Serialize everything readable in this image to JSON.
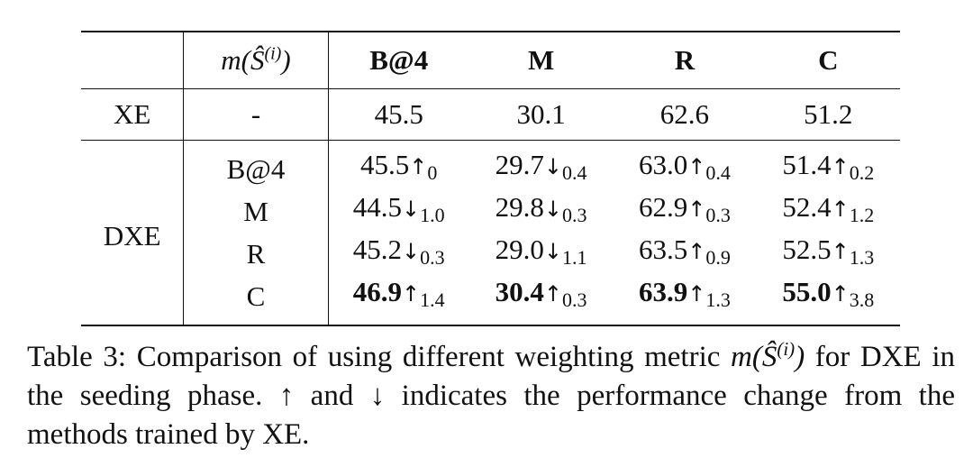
{
  "table": {
    "header": {
      "col_label": "m(Ŝ",
      "col_label_sup": "(i)",
      "col_label_close": ")",
      "metrics": [
        "B@4",
        "M",
        "R",
        "C"
      ]
    },
    "xe_row": {
      "label": "XE",
      "metric": "-",
      "values": [
        "45.5",
        "30.1",
        "62.6",
        "51.2"
      ]
    },
    "dxe_group": {
      "label": "DXE",
      "rows": [
        {
          "metric": "B@4",
          "cells": [
            {
              "value": "45.5",
              "arrow": "↑",
              "delta": "0"
            },
            {
              "value": "29.7",
              "arrow": "↓",
              "delta": "0.4"
            },
            {
              "value": "63.0",
              "arrow": "↑",
              "delta": "0.4"
            },
            {
              "value": "51.4",
              "arrow": "↑",
              "delta": "0.2"
            }
          ]
        },
        {
          "metric": "M",
          "cells": [
            {
              "value": "44.5",
              "arrow": "↓",
              "delta": "1.0"
            },
            {
              "value": "29.8",
              "arrow": "↓",
              "delta": "0.3"
            },
            {
              "value": "62.9",
              "arrow": "↑",
              "delta": "0.3"
            },
            {
              "value": "52.4",
              "arrow": "↑",
              "delta": "1.2"
            }
          ]
        },
        {
          "metric": "R",
          "cells": [
            {
              "value": "45.2",
              "arrow": "↓",
              "delta": "0.3"
            },
            {
              "value": "29.0",
              "arrow": "↓",
              "delta": "1.1"
            },
            {
              "value": "63.5",
              "arrow": "↑",
              "delta": "0.9"
            },
            {
              "value": "52.5",
              "arrow": "↑",
              "delta": "1.3"
            }
          ]
        },
        {
          "metric": "C",
          "cells": [
            {
              "value": "46.9",
              "arrow": "↑",
              "delta": "1.4"
            },
            {
              "value": "30.4",
              "arrow": "↑",
              "delta": "0.3"
            },
            {
              "value": "63.9",
              "arrow": "↑",
              "delta": "1.3"
            },
            {
              "value": "55.0",
              "arrow": "↑",
              "delta": "3.8"
            }
          ]
        }
      ]
    }
  },
  "caption": {
    "part1": "Table 3: Comparison of using different weighting metric ",
    "math": "m(Ŝ",
    "math_sup": "(i)",
    "math_close": ")",
    "part2": " for DXE in the seeding phase. ↑ and ↓ indicates the performance change from the methods trained by XE."
  }
}
